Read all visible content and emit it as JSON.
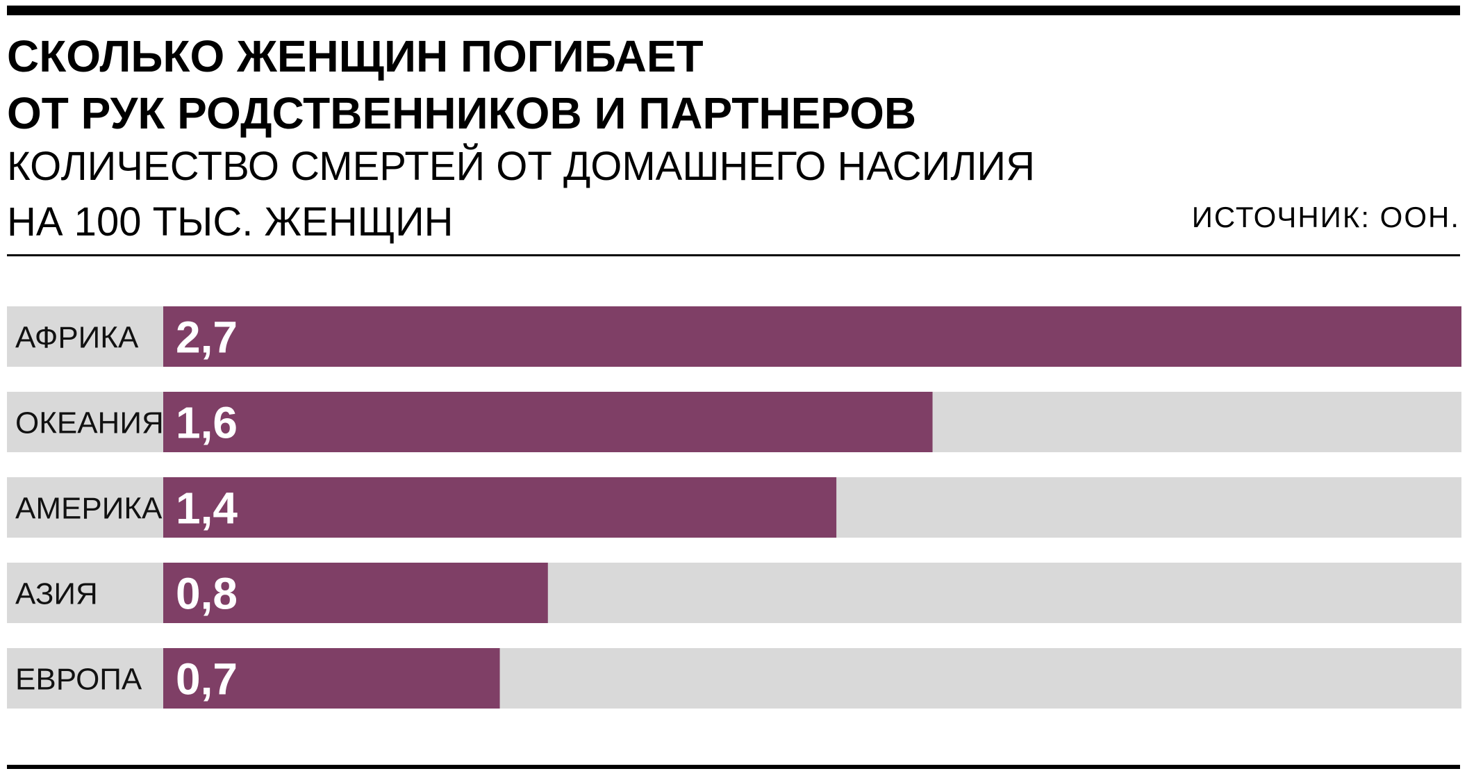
{
  "chart_data": {
    "type": "bar",
    "orientation": "horizontal",
    "title_lines": [
      "СКОЛЬКО ЖЕНЩИН ПОГИБАЕТ",
      "ОТ РУК РОДСТВЕННИКОВ И ПАРТНЕРОВ"
    ],
    "subtitle_lines": [
      "КОЛИЧЕСТВО СМЕРТЕЙ ОТ ДОМАШНЕГО НАСИЛИЯ",
      "НА 100 ТЫС. ЖЕНЩИН"
    ],
    "source": "ИСТОЧНИК: ООН.",
    "categories": [
      "АФРИКА",
      "ОКЕАНИЯ",
      "АМЕРИКА",
      "АЗИЯ",
      "ЕВРОПА"
    ],
    "values": [
      2.7,
      1.6,
      1.4,
      0.8,
      0.7
    ],
    "value_labels": [
      "2,7",
      "1,6",
      "1,4",
      "0,8",
      "0,7"
    ],
    "xlim": [
      0,
      2.7
    ],
    "grid": false,
    "legend": "none",
    "colors": {
      "bar": "#7f3f66",
      "track": "#d9d9d9"
    }
  }
}
